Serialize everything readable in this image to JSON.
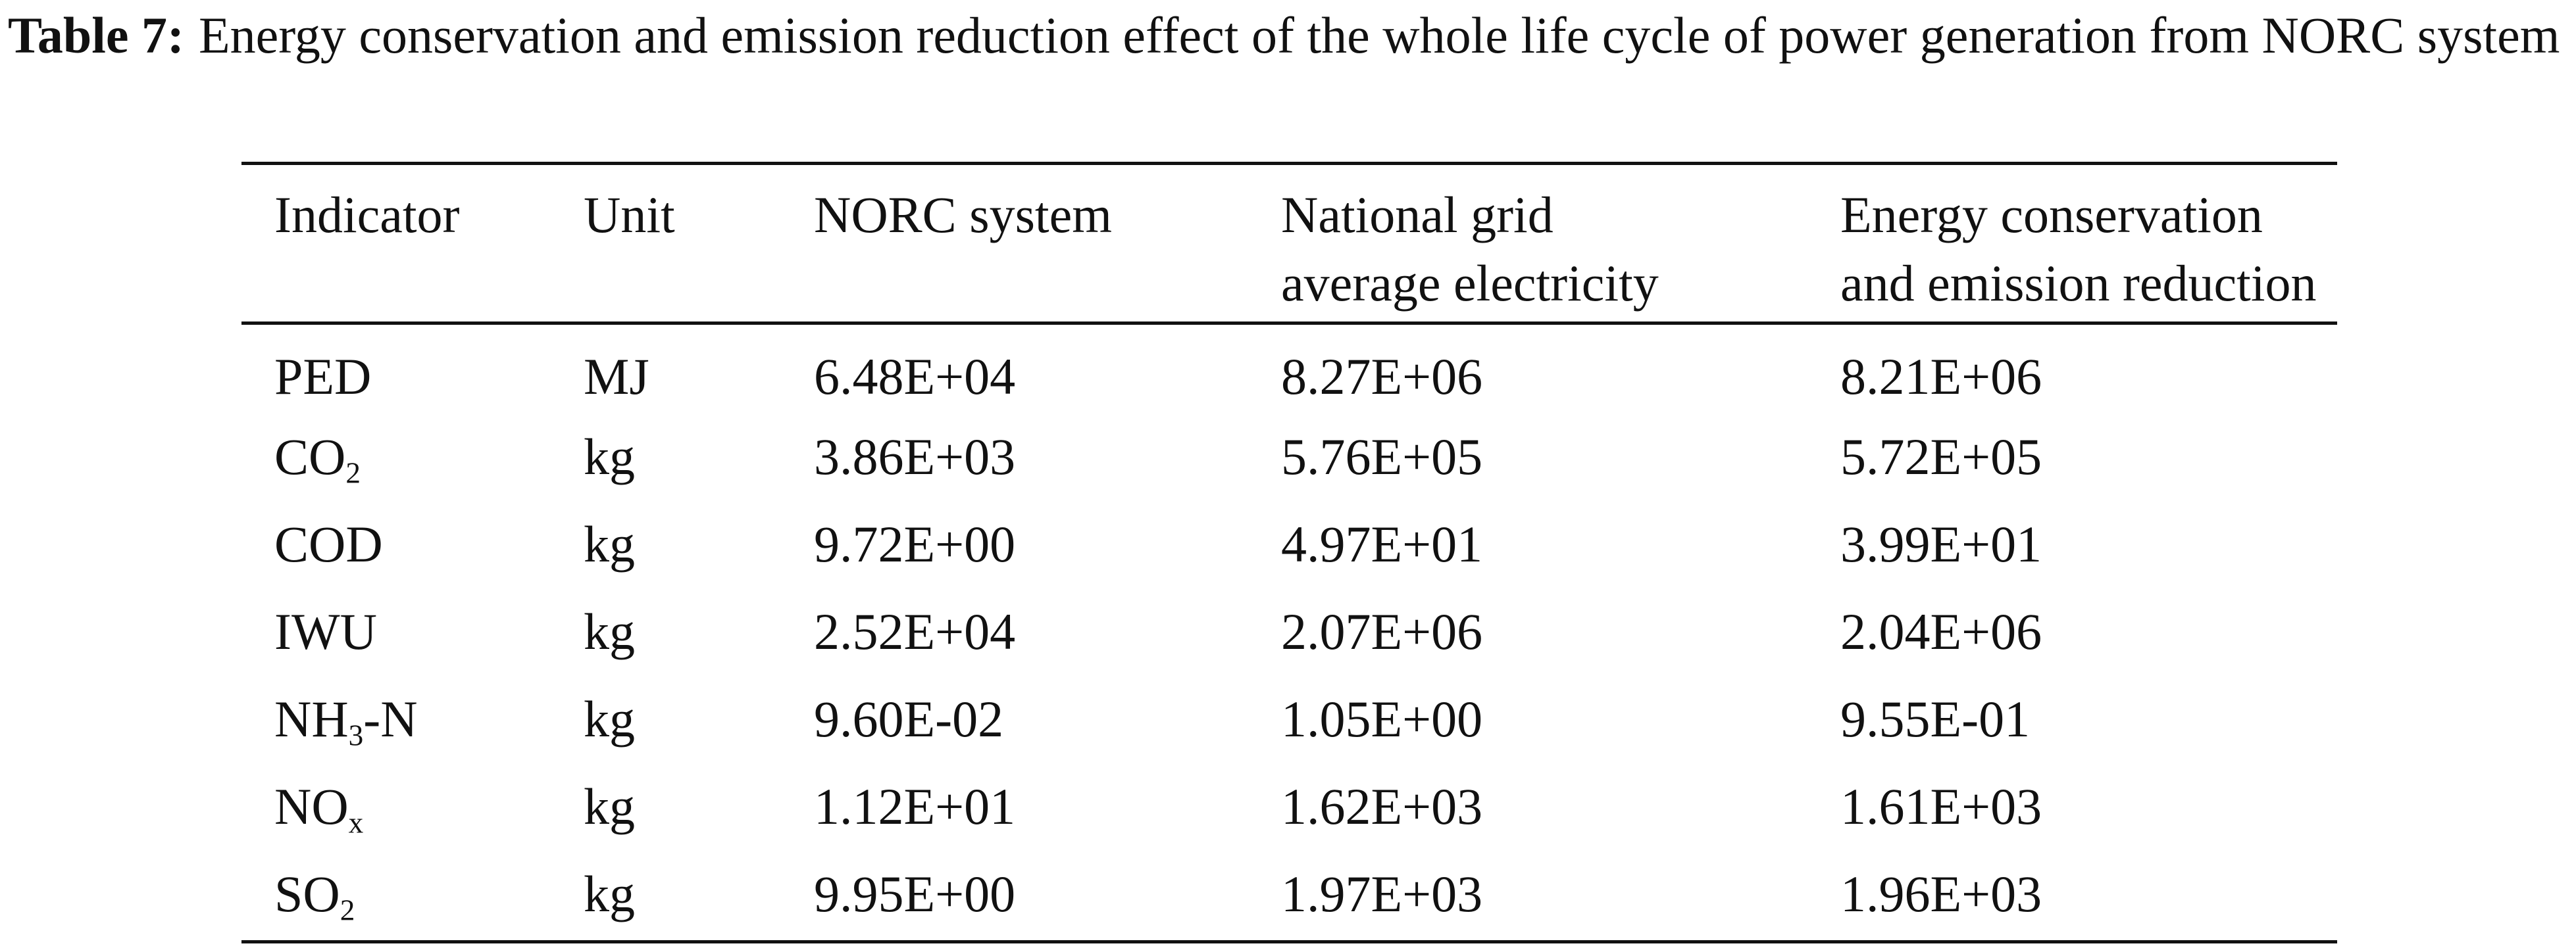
{
  "caption": {
    "label": "Table 7:",
    "text": "Energy conservation and emission reduction effect of the whole life cycle of power generation from NORC system"
  },
  "table": {
    "headers": {
      "indicator": "Indicator",
      "unit": "Unit",
      "norc": "NORC system",
      "grid_line1": "National grid",
      "grid_line2": "average electricity",
      "reduction_line1": "Energy conservation",
      "reduction_line2": "and emission reduction"
    },
    "rows": [
      {
        "ind_main": "PED",
        "ind_sub": "",
        "ind_tail": "",
        "unit": "MJ",
        "norc": "6.48E+04",
        "grid": "8.27E+06",
        "reduction": "8.21E+06"
      },
      {
        "ind_main": "CO",
        "ind_sub": "2",
        "ind_tail": "",
        "unit": "kg",
        "norc": "3.86E+03",
        "grid": "5.76E+05",
        "reduction": "5.72E+05"
      },
      {
        "ind_main": "COD",
        "ind_sub": "",
        "ind_tail": "",
        "unit": "kg",
        "norc": "9.72E+00",
        "grid": "4.97E+01",
        "reduction": "3.99E+01"
      },
      {
        "ind_main": "IWU",
        "ind_sub": "",
        "ind_tail": "",
        "unit": "kg",
        "norc": "2.52E+04",
        "grid": "2.07E+06",
        "reduction": "2.04E+06"
      },
      {
        "ind_main": "NH",
        "ind_sub": "3",
        "ind_tail": "-N",
        "unit": "kg",
        "norc": "9.60E-02",
        "grid": "1.05E+00",
        "reduction": "9.55E-01"
      },
      {
        "ind_main": "NO",
        "ind_sub": "x",
        "ind_tail": "",
        "unit": "kg",
        "norc": "1.12E+01",
        "grid": "1.62E+03",
        "reduction": "1.61E+03"
      },
      {
        "ind_main": "SO",
        "ind_sub": "2",
        "ind_tail": "",
        "unit": "kg",
        "norc": "9.95E+00",
        "grid": "1.97E+03",
        "reduction": "1.96E+03"
      }
    ]
  }
}
